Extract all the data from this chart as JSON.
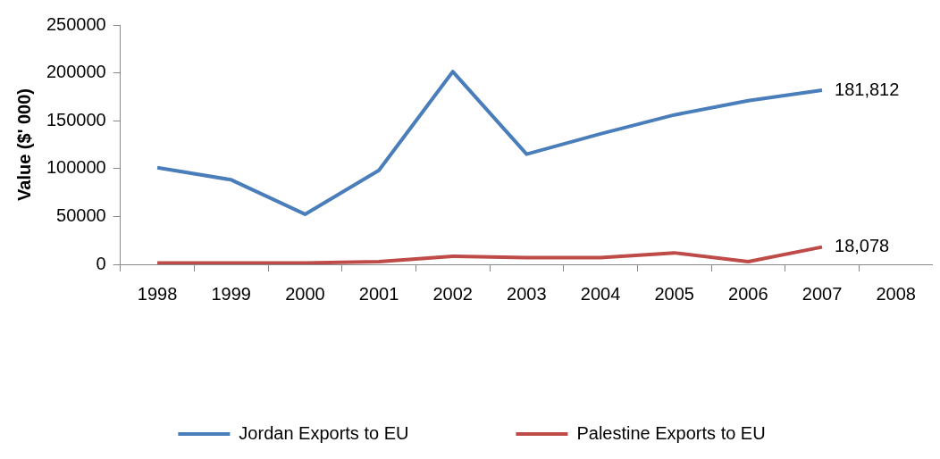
{
  "chart_data": {
    "type": "line",
    "ylabel": "Value ($' 000)",
    "categories": [
      "1998",
      "1999",
      "2000",
      "2001",
      "2002",
      "2003",
      "2004",
      "2005",
      "2006",
      "2007",
      "2008"
    ],
    "series": [
      {
        "name": "Jordan Exports to EU",
        "color": "#4a7ebb",
        "values": [
          101000,
          88300,
          52300,
          98200,
          201300,
          115100,
          136300,
          156100,
          170900,
          181812,
          null
        ],
        "value_labels": [
          null,
          null,
          null,
          null,
          null,
          null,
          null,
          null,
          null,
          "181,812",
          null
        ]
      },
      {
        "name": "Palestine Exports to EU",
        "color": "#be4b48",
        "values": [
          1400,
          1300,
          1500,
          2800,
          8500,
          7000,
          7000,
          12000,
          2800,
          18078,
          null
        ],
        "value_labels": [
          null,
          null,
          null,
          null,
          null,
          null,
          null,
          null,
          null,
          "18,078",
          null
        ]
      }
    ],
    "ylim": [
      0,
      250000
    ],
    "yticks": [
      0,
      50000,
      100000,
      150000,
      200000,
      250000
    ],
    "grid": false,
    "legend": "bottom",
    "marker": "none"
  }
}
